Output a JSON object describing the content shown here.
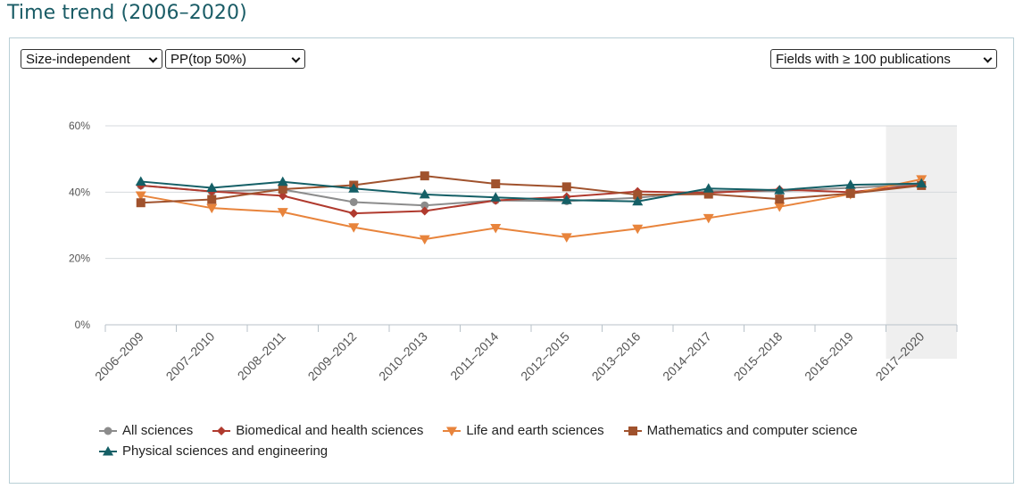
{
  "page": {
    "title": "Time trend (2006–2020)"
  },
  "controls": {
    "metric_type": "Size-independent",
    "indicator": "PP(top 50%)",
    "fields_filter": "Fields with ≥ 100 publications"
  },
  "chart_data": {
    "type": "line",
    "x": [
      "2006–2009",
      "2007–2010",
      "2008–2011",
      "2009–2012",
      "2010–2013",
      "2011–2014",
      "2012–2015",
      "2013–2016",
      "2014–2017",
      "2015–2018",
      "2016–2019",
      "2017–2020"
    ],
    "ylim": [
      0,
      60
    ],
    "yticks": [
      0,
      20,
      40,
      60
    ],
    "ytick_labels": [
      "0%",
      "20%",
      "40%",
      "60%"
    ],
    "highlight_x": "2017–2020",
    "grid": "horizontal",
    "legend_position": "bottom",
    "series": [
      {
        "name": "All sciences",
        "color": "#8c8c8c",
        "marker": "circle",
        "values": [
          42.0,
          40.2,
          40.8,
          37.0,
          36.0,
          37.5,
          37.3,
          38.3,
          40.3,
          40.3,
          41.3,
          42.3
        ]
      },
      {
        "name": "Biomedical and health sciences",
        "color": "#b03a2e",
        "marker": "diamond",
        "values": [
          42.0,
          40.2,
          38.9,
          33.6,
          34.3,
          37.5,
          38.6,
          40.2,
          39.8,
          40.8,
          40.0,
          42.2
        ]
      },
      {
        "name": "Life and earth sciences",
        "color": "#e8843c",
        "marker": "triangle-down",
        "values": [
          39.0,
          35.2,
          34.0,
          29.4,
          25.8,
          29.2,
          26.4,
          29.0,
          32.2,
          35.6,
          39.4,
          43.9
        ]
      },
      {
        "name": "Mathematics and computer science",
        "color": "#a0522d",
        "marker": "square",
        "values": [
          36.8,
          37.8,
          40.9,
          42.1,
          44.9,
          42.5,
          41.6,
          39.2,
          39.4,
          37.9,
          39.6,
          42.0
        ]
      },
      {
        "name": "Physical sciences and engineering",
        "color": "#145f66",
        "marker": "triangle-up",
        "values": [
          43.2,
          41.3,
          43.1,
          41.1,
          39.3,
          38.4,
          37.6,
          37.2,
          41.1,
          40.6,
          42.2,
          42.6
        ]
      }
    ]
  }
}
